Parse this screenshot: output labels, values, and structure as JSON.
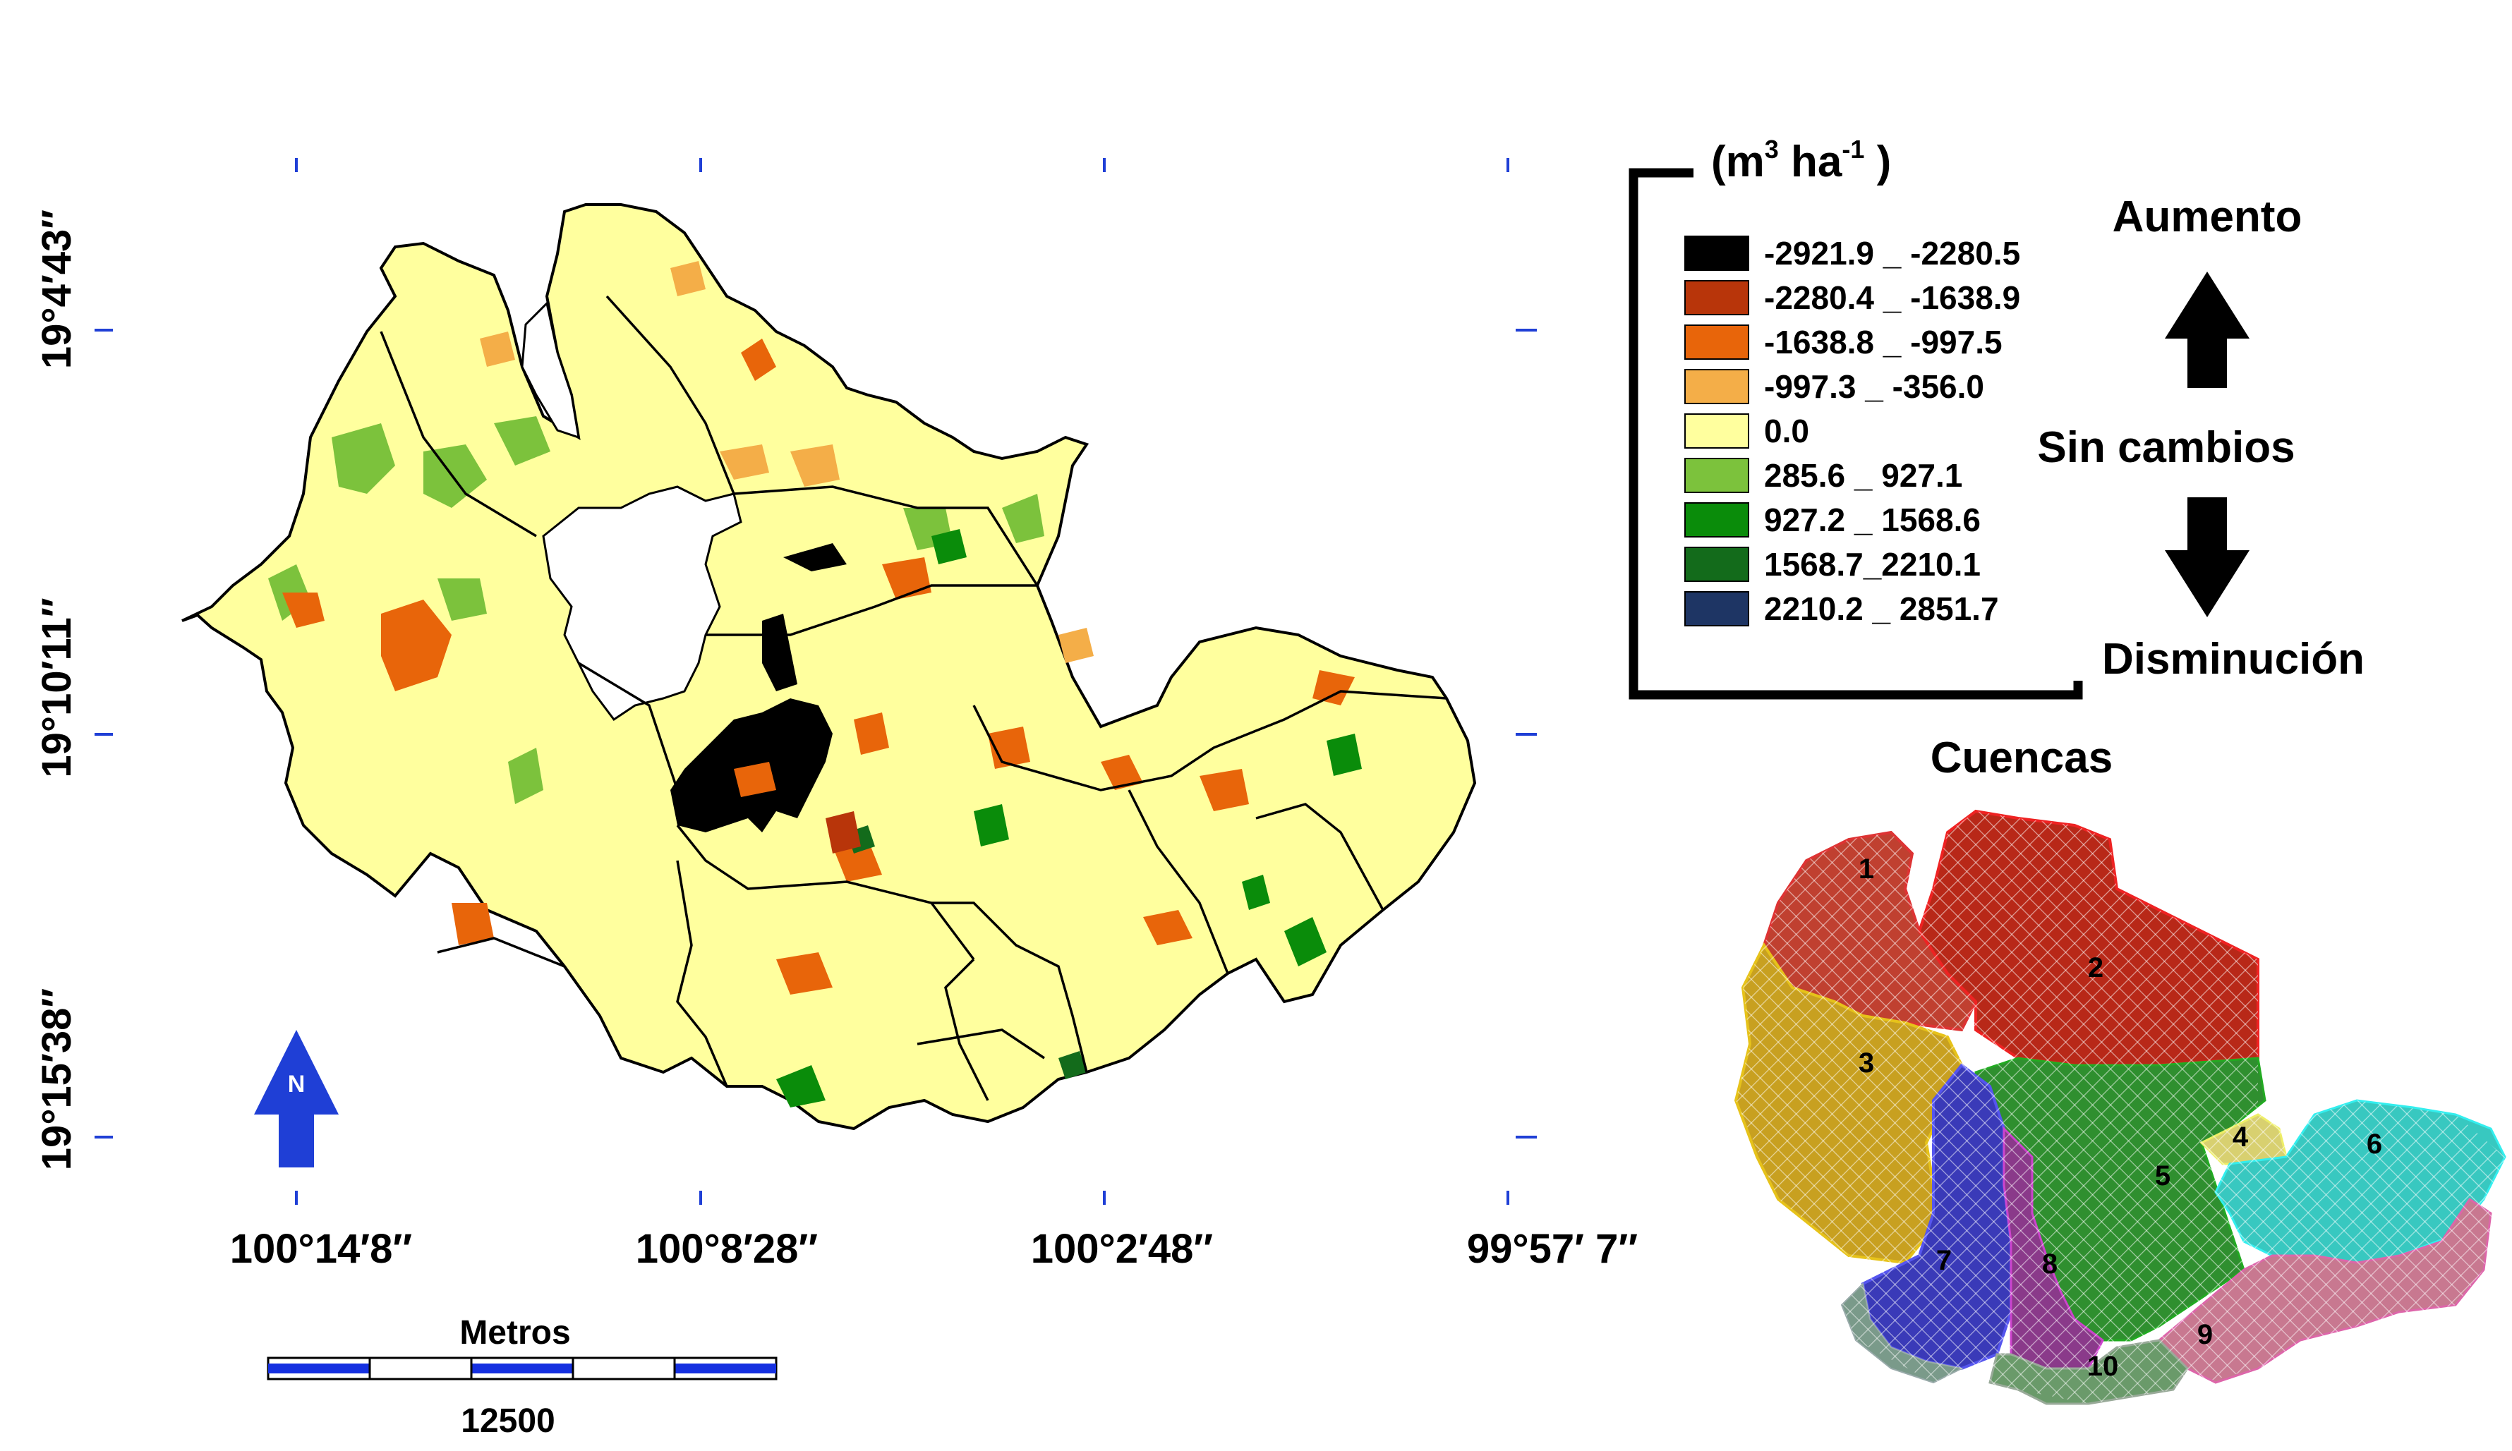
{
  "coordinates": {
    "longitudes": [
      "100°14′8″",
      "100°8′28″",
      "100°2′48″",
      "99°57′ 7″"
    ],
    "latitudes": [
      "19°4′43″",
      "19°10′11″",
      "19°15′38″"
    ]
  },
  "north_arrow": {
    "label": "N",
    "color": "#1f3fd6"
  },
  "scale_bar": {
    "title": "Metros",
    "value": "12500"
  },
  "legend": {
    "unit_base": "(m",
    "unit_sup1": "3",
    "unit_mid": " ha",
    "unit_sup2": "-1",
    "unit_end": " )",
    "classes": [
      {
        "label": "-2921.9 _ -2280.5",
        "color": "#000000"
      },
      {
        "label": "-2280.4 _ -1638.9",
        "color": "#b8350a"
      },
      {
        "label": "-1638.8 _ -997.5",
        "color": "#e8650a"
      },
      {
        "label": "-997.3 _ -356.0",
        "color": "#f4ae48"
      },
      {
        "label": "0.0",
        "color": "#ffff9e"
      },
      {
        "label": "285.6 _ 927.1",
        "color": "#7cc23c"
      },
      {
        "label": "927.2 _ 1568.6",
        "color": "#0a8c0a"
      },
      {
        "label": "1568.7_2210.1",
        "color": "#136b1b"
      },
      {
        "label": "2210.2 _ 2851.7",
        "color": "#1e3564"
      }
    ]
  },
  "change_labels": {
    "increase": "Aumento",
    "no_change": "Sin cambios",
    "decrease": "Disminución"
  },
  "inset": {
    "title": "Cuencas",
    "basins": [
      {
        "id": "1",
        "color": "#c04030"
      },
      {
        "id": "2",
        "color": "#b82818"
      },
      {
        "id": "3",
        "color": "#c8a020"
      },
      {
        "id": "4",
        "color": "#d8d070"
      },
      {
        "id": "5",
        "color": "#2f8f2f"
      },
      {
        "id": "6",
        "color": "#38c8c0"
      },
      {
        "id": "7",
        "color": "#3a3ab8"
      },
      {
        "id": "8",
        "color": "#8a3a8a"
      },
      {
        "id": "9",
        "color": "#c87890"
      },
      {
        "id": "10",
        "color": "#6a9a6a"
      }
    ]
  }
}
